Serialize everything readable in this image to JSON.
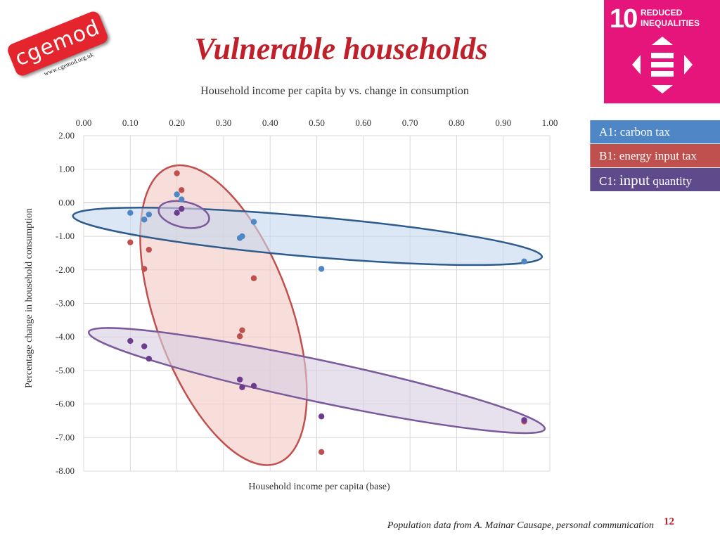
{
  "logo": {
    "text": "cgemod",
    "url": "www.cgemod.org.uk"
  },
  "title": "Vulnerable households",
  "sdg": {
    "number": "10",
    "label_line1": "REDUCED",
    "label_line2": "INEQUALITIES",
    "bg_color": "#e5157b",
    "icon": "reduced-inequalities-icon"
  },
  "legend": [
    {
      "label": "A1: carbon tax",
      "color": "#4e86c6"
    },
    {
      "label": "B1: energy input tax",
      "color": "#c0504d"
    },
    {
      "label_prefix": "C1: ",
      "label_big": "input",
      "label_suffix": " quantity",
      "color": "#5f4b8b"
    }
  ],
  "chart_data": {
    "type": "scatter",
    "title": "",
    "subtitle": "Household income per capita by vs. change in consumption",
    "xlabel": "Household income per capita (base)",
    "ylabel": "Percentage change in household consumption",
    "xlim": [
      0,
      1
    ],
    "ylim": [
      -8,
      2
    ],
    "x_ticks": [
      "0.00",
      "0.10",
      "0.20",
      "0.30",
      "0.40",
      "0.50",
      "0.60",
      "0.70",
      "0.80",
      "0.90",
      "1.00"
    ],
    "y_ticks": [
      "2.00",
      "1.00",
      "0.00",
      "-1.00",
      "-2.00",
      "-3.00",
      "-4.00",
      "-5.00",
      "-6.00",
      "-7.00",
      "-8.00"
    ],
    "x_axis_position": "top",
    "grid": true,
    "legend_position": "right",
    "series": [
      {
        "id": "A1",
        "color": "#4e86c6",
        "ellipse_fill": "#c5d9ed",
        "ellipse_stroke": "#2e5b8c",
        "points": [
          {
            "x": 0.1,
            "y": -0.3
          },
          {
            "x": 0.13,
            "y": -0.5
          },
          {
            "x": 0.14,
            "y": -0.35
          },
          {
            "x": 0.2,
            "y": 0.25
          },
          {
            "x": 0.21,
            "y": 0.1
          },
          {
            "x": 0.335,
            "y": -1.05
          },
          {
            "x": 0.34,
            "y": -1.0
          },
          {
            "x": 0.365,
            "y": -0.57
          },
          {
            "x": 0.51,
            "y": -1.97
          },
          {
            "x": 0.945,
            "y": -1.75
          }
        ]
      },
      {
        "id": "B1",
        "color": "#c0504d",
        "ellipse_fill": "#f2c9c4",
        "ellipse_stroke": "#c0504d",
        "points": [
          {
            "x": 0.1,
            "y": -1.18
          },
          {
            "x": 0.13,
            "y": -1.97
          },
          {
            "x": 0.14,
            "y": -1.4
          },
          {
            "x": 0.2,
            "y": 0.88
          },
          {
            "x": 0.21,
            "y": 0.38
          },
          {
            "x": 0.335,
            "y": -3.98
          },
          {
            "x": 0.34,
            "y": -3.8
          },
          {
            "x": 0.365,
            "y": -2.25
          },
          {
            "x": 0.51,
            "y": -7.43
          },
          {
            "x": 0.945,
            "y": -6.52
          }
        ]
      },
      {
        "id": "C1",
        "color": "#6d3c8f",
        "ellipse_fill": "#d9cfe3",
        "ellipse_stroke": "#7a5a9a",
        "points": [
          {
            "x": 0.1,
            "y": -4.12
          },
          {
            "x": 0.13,
            "y": -4.28
          },
          {
            "x": 0.14,
            "y": -4.65
          },
          {
            "x": 0.2,
            "y": -0.3
          },
          {
            "x": 0.21,
            "y": -0.18
          },
          {
            "x": 0.335,
            "y": -5.27
          },
          {
            "x": 0.34,
            "y": -5.5
          },
          {
            "x": 0.365,
            "y": -5.46
          },
          {
            "x": 0.51,
            "y": -6.37
          },
          {
            "x": 0.945,
            "y": -6.48
          }
        ]
      }
    ],
    "ellipses": [
      {
        "series": "B1",
        "cx": 0.3,
        "cy": -3.35,
        "rx": 0.145,
        "ry": 4.7,
        "rotate": -20
      },
      {
        "series": "C1",
        "cx": 0.5,
        "cy": -5.3,
        "rx": 0.5,
        "ry": 0.62,
        "rotate": 12
      },
      {
        "series": "A1",
        "cx": 0.48,
        "cy": -1.0,
        "rx": 0.505,
        "ry": 0.6,
        "rotate": 5
      },
      {
        "series": "C1",
        "cx": 0.215,
        "cy": -0.35,
        "rx": 0.055,
        "ry": 0.38,
        "rotate": 12
      }
    ]
  },
  "footnote": "Population data from A. Mainar Causape, personal communication",
  "page_number": "12"
}
